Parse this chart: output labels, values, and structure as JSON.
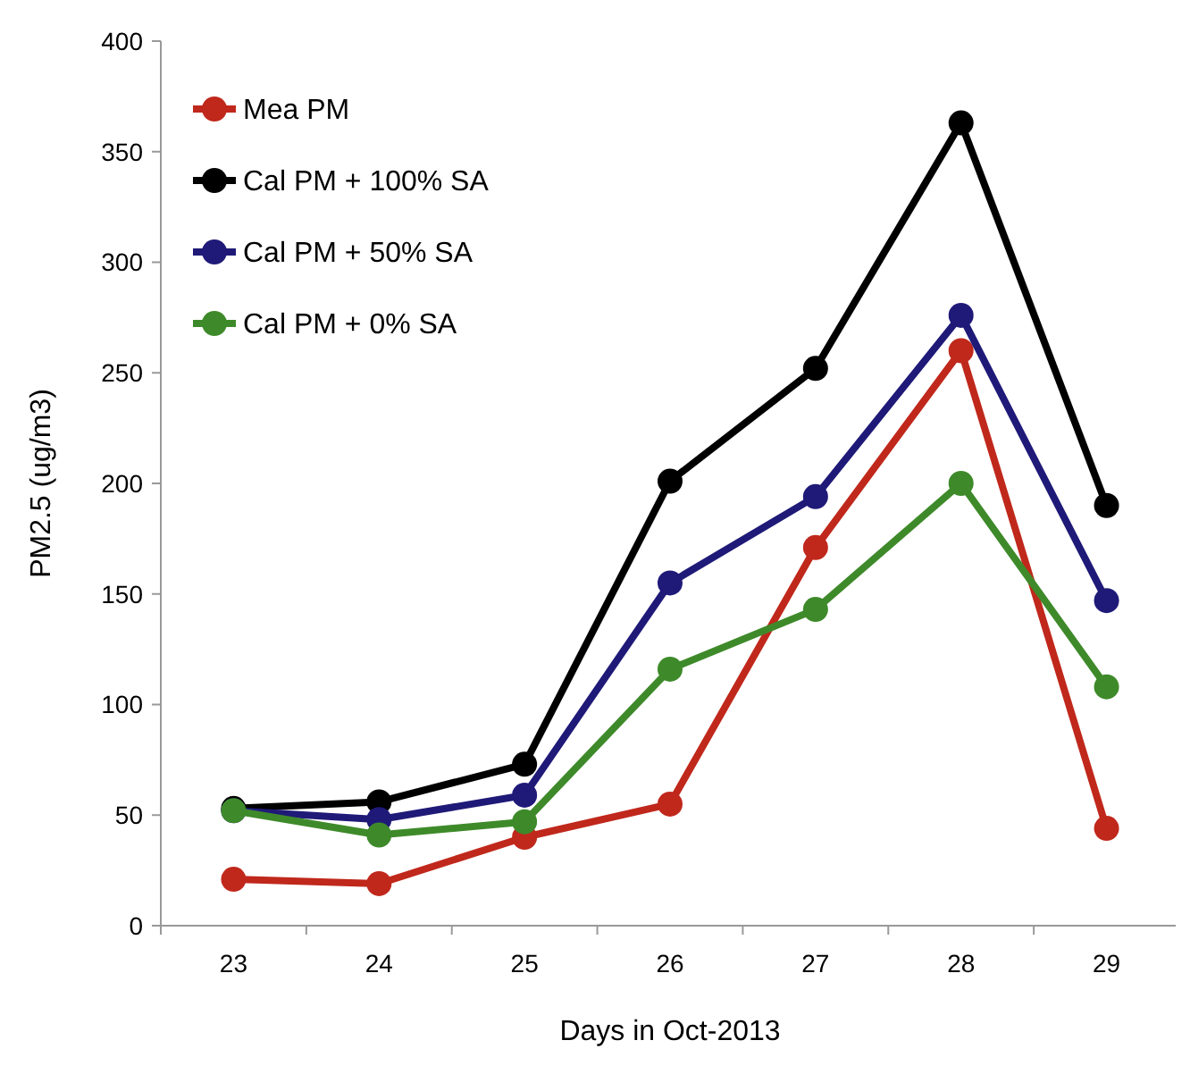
{
  "chart_data": {
    "type": "line",
    "xlabel": "Days in Oct-2013",
    "ylabel": "PM2.5 (ug/m3)",
    "categories": [
      "23",
      "24",
      "25",
      "26",
      "27",
      "28",
      "29"
    ],
    "ylim": [
      0,
      400
    ],
    "yticks": [
      0,
      50,
      100,
      150,
      200,
      250,
      300,
      350,
      400
    ],
    "grid": false,
    "legend": "top left",
    "marker": "circle",
    "line_style": "solid",
    "series": [
      {
        "name": "Mea PM",
        "color": "#c0281c",
        "values": [
          21,
          19,
          40,
          55,
          171,
          260,
          44
        ]
      },
      {
        "name": "Cal PM + 100% SA",
        "color": "#000000",
        "values": [
          53,
          56,
          73,
          201,
          252,
          363,
          190
        ]
      },
      {
        "name": "Cal PM + 50% SA",
        "color": "#1f1a78",
        "values": [
          52,
          48,
          59,
          155,
          194,
          276,
          147
        ]
      },
      {
        "name": "Cal PM + 0% SA",
        "color": "#3e8a2a",
        "values": [
          52,
          41,
          47,
          116,
          143,
          200,
          108
        ]
      }
    ]
  }
}
